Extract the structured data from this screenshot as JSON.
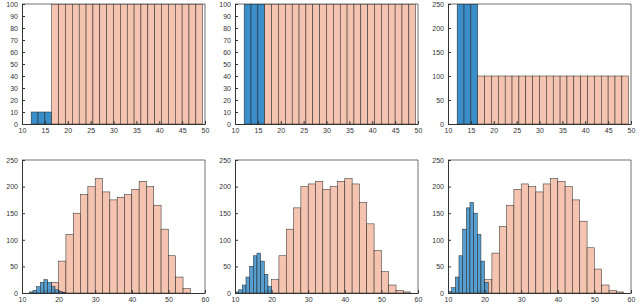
{
  "chart_data": [
    {
      "type": "histogram",
      "xlim": [
        10,
        50
      ],
      "xticks": [
        10,
        15,
        20,
        25,
        30,
        35,
        40,
        45,
        50
      ],
      "ylim": [
        0,
        100
      ],
      "yticks": [
        0,
        10,
        20,
        30,
        40,
        50,
        60,
        70,
        80,
        90,
        100
      ],
      "series": [
        {
          "color": "#3a8ec9",
          "bins": [
            12,
            13.5,
            15,
            16.5
          ],
          "values": [
            10,
            10,
            10
          ]
        },
        {
          "color": "#f4c4b0",
          "bins": [
            16.5,
            18,
            19.5,
            21,
            22.5,
            24,
            25.5,
            27,
            28.5,
            30,
            31.5,
            33,
            34.5,
            36,
            37.5,
            39,
            40.5,
            42,
            43.5,
            45,
            46.5,
            48,
            49.5
          ],
          "values": [
            100,
            100,
            100,
            100,
            100,
            100,
            100,
            100,
            100,
            100,
            100,
            100,
            100,
            100,
            100,
            100,
            100,
            100,
            100,
            100,
            100,
            100
          ]
        }
      ]
    },
    {
      "type": "histogram",
      "xlim": [
        10,
        50
      ],
      "xticks": [
        10,
        15,
        20,
        25,
        30,
        35,
        40,
        45,
        50
      ],
      "ylim": [
        0,
        100
      ],
      "yticks": [
        0,
        10,
        20,
        30,
        40,
        50,
        60,
        70,
        80,
        90,
        100
      ],
      "series": [
        {
          "color": "#3a8ec9",
          "bins": [
            12,
            13.5,
            15,
            16.5
          ],
          "values": [
            100,
            100,
            100
          ]
        },
        {
          "color": "#f4c4b0",
          "bins": [
            16.5,
            18,
            19.5,
            21,
            22.5,
            24,
            25.5,
            27,
            28.5,
            30,
            31.5,
            33,
            34.5,
            36,
            37.5,
            39,
            40.5,
            42,
            43.5,
            45,
            46.5,
            48,
            49.5
          ],
          "values": [
            100,
            100,
            100,
            100,
            100,
            100,
            100,
            100,
            100,
            100,
            100,
            100,
            100,
            100,
            100,
            100,
            100,
            100,
            100,
            100,
            100,
            100
          ]
        }
      ]
    },
    {
      "type": "histogram",
      "xlim": [
        10,
        50
      ],
      "xticks": [
        10,
        15,
        20,
        25,
        30,
        35,
        40,
        45,
        50
      ],
      "ylim": [
        0,
        250
      ],
      "yticks": [
        0,
        50,
        100,
        150,
        200,
        250
      ],
      "series": [
        {
          "color": "#3a8ec9",
          "bins": [
            12,
            13.5,
            15,
            16.5
          ],
          "values": [
            250,
            250,
            250
          ]
        },
        {
          "color": "#f4c4b0",
          "bins": [
            16.5,
            18,
            19.5,
            21,
            22.5,
            24,
            25.5,
            27,
            28.5,
            30,
            31.5,
            33,
            34.5,
            36,
            37.5,
            39,
            40.5,
            42,
            43.5,
            45,
            46.5,
            48,
            49.5
          ],
          "values": [
            100,
            100,
            100,
            100,
            100,
            100,
            100,
            100,
            100,
            100,
            100,
            100,
            100,
            100,
            100,
            100,
            100,
            100,
            100,
            100,
            100,
            100
          ]
        }
      ]
    },
    {
      "type": "histogram",
      "xlim": [
        10,
        60
      ],
      "xticks": [
        10,
        20,
        30,
        40,
        50,
        60
      ],
      "ylim": [
        0,
        250
      ],
      "yticks": [
        0,
        50,
        100,
        150,
        200,
        250
      ],
      "series": [
        {
          "color": "#f4c4b0",
          "bins": [
            16,
            18,
            20,
            22,
            24,
            26,
            28,
            30,
            32,
            34,
            36,
            38,
            40,
            42,
            44,
            46,
            48,
            50,
            52,
            54,
            56
          ],
          "values": [
            5,
            20,
            60,
            110,
            150,
            185,
            200,
            215,
            190,
            175,
            180,
            185,
            195,
            210,
            200,
            165,
            120,
            70,
            30,
            8
          ]
        },
        {
          "color": "#3a8ec9",
          "bins": [
            12,
            13,
            14,
            15,
            16,
            17,
            18,
            19,
            20,
            21,
            22
          ],
          "values": [
            2,
            5,
            12,
            20,
            25,
            20,
            12,
            6,
            3,
            1
          ]
        }
      ]
    },
    {
      "type": "histogram",
      "xlim": [
        10,
        60
      ],
      "xticks": [
        10,
        20,
        30,
        40,
        50,
        60
      ],
      "ylim": [
        0,
        250
      ],
      "yticks": [
        0,
        50,
        100,
        150,
        200,
        250
      ],
      "series": [
        {
          "color": "#f4c4b0",
          "bins": [
            18,
            20,
            22,
            24,
            26,
            28,
            30,
            32,
            34,
            36,
            38,
            40,
            42,
            44,
            46,
            48,
            50,
            52,
            54,
            56,
            58
          ],
          "values": [
            5,
            25,
            70,
            120,
            160,
            200,
            205,
            210,
            195,
            200,
            210,
            215,
            205,
            170,
            130,
            80,
            40,
            15,
            5,
            2
          ]
        },
        {
          "color": "#3a8ec9",
          "bins": [
            10,
            11,
            12,
            13,
            14,
            15,
            16,
            17,
            18,
            19,
            20
          ],
          "values": [
            2,
            6,
            15,
            30,
            50,
            70,
            75,
            60,
            35,
            12
          ]
        }
      ]
    },
    {
      "type": "histogram",
      "xlim": [
        10,
        60
      ],
      "xticks": [
        10,
        20,
        30,
        40,
        50,
        60
      ],
      "ylim": [
        0,
        250
      ],
      "yticks": [
        0,
        50,
        100,
        150,
        200,
        250
      ],
      "series": [
        {
          "color": "#f4c4b0",
          "bins": [
            18,
            20,
            22,
            24,
            26,
            28,
            30,
            32,
            34,
            36,
            38,
            40,
            42,
            44,
            46,
            48,
            50,
            52,
            54,
            56,
            58
          ],
          "values": [
            5,
            25,
            75,
            125,
            165,
            195,
            205,
            200,
            190,
            205,
            215,
            210,
            200,
            175,
            135,
            85,
            45,
            15,
            5,
            2
          ]
        },
        {
          "color": "#3a8ec9",
          "bins": [
            10,
            11,
            12,
            13,
            14,
            15,
            16,
            17,
            18,
            19,
            20,
            21
          ],
          "values": [
            3,
            10,
            30,
            70,
            120,
            160,
            170,
            150,
            110,
            60,
            20
          ]
        }
      ]
    }
  ]
}
